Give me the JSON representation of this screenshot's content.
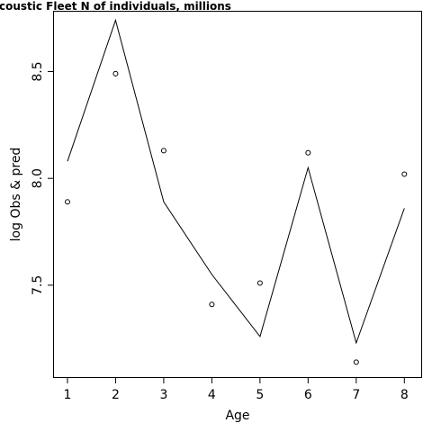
{
  "chart_data": {
    "type": "line",
    "title": "coustic Fleet   N of individuals, millions",
    "xlabel": "Age",
    "ylabel": "log Obs & pred",
    "x": [
      1,
      2,
      3,
      4,
      5,
      6,
      7,
      8
    ],
    "xlim": [
      0.72,
      8.35
    ],
    "ylim": [
      7.07,
      8.78
    ],
    "x_ticks": [
      "1",
      "2",
      "3",
      "4",
      "5",
      "6",
      "7",
      "8"
    ],
    "y_ticks": [
      {
        "value": 7.5,
        "label": "7.5"
      },
      {
        "value": 8.0,
        "label": "8.0"
      },
      {
        "value": 8.5,
        "label": "8.5"
      }
    ],
    "grid": false,
    "series": [
      {
        "kind": "line",
        "values": [
          8.08,
          8.74,
          7.89,
          7.55,
          7.26,
          8.05,
          7.23,
          7.86
        ],
        "color": "#000000"
      },
      {
        "kind": "points",
        "values": [
          7.89,
          8.49,
          8.13,
          7.41,
          7.51,
          8.12,
          7.14,
          8.02
        ],
        "color": "#000000"
      }
    ]
  }
}
